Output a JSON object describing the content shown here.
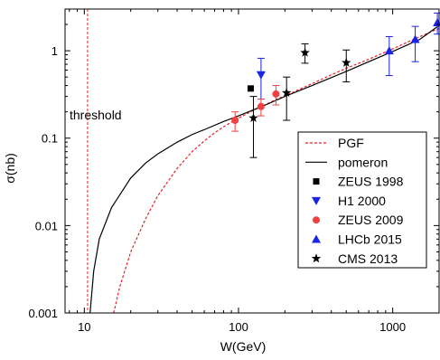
{
  "chart_data": {
    "type": "scatter",
    "xlabel": "W(GeV)",
    "ylabel": "σ(nb)",
    "xscale": "log",
    "yscale": "log",
    "xlim": [
      7.5,
      2000
    ],
    "ylim": [
      0.001,
      3
    ],
    "x_ticks": [
      {
        "v": 10,
        "label": "10"
      },
      {
        "v": 100,
        "label": "100"
      },
      {
        "v": 1000,
        "label": "1000"
      }
    ],
    "y_ticks": [
      {
        "v": 0.001,
        "label": "0.001"
      },
      {
        "v": 0.01,
        "label": "0.01"
      },
      {
        "v": 0.1,
        "label": "0.1"
      },
      {
        "v": 1,
        "label": "1"
      }
    ],
    "threshold": {
      "x": 10.5,
      "label": "threshold",
      "color": "#e8222a"
    },
    "legend_position": "lower-right",
    "curves": [
      {
        "name": "PGF",
        "color": "#e8222a",
        "style": "dashed",
        "points": [
          [
            15.5,
            0.001
          ],
          [
            17,
            0.002
          ],
          [
            20,
            0.005
          ],
          [
            25,
            0.012
          ],
          [
            30,
            0.022
          ],
          [
            40,
            0.045
          ],
          [
            50,
            0.07
          ],
          [
            60,
            0.093
          ],
          [
            70,
            0.115
          ],
          [
            80,
            0.135
          ],
          [
            100,
            0.17
          ],
          [
            130,
            0.215
          ],
          [
            170,
            0.27
          ],
          [
            200,
            0.305
          ],
          [
            300,
            0.42
          ],
          [
            400,
            0.53
          ],
          [
            500,
            0.63
          ],
          [
            700,
            0.8
          ],
          [
            1000,
            1.05
          ],
          [
            1500,
            1.45
          ],
          [
            2000,
            1.8
          ]
        ]
      },
      {
        "name": "pomeron",
        "color": "#000000",
        "style": "solid",
        "points": [
          [
            10.9,
            0.001
          ],
          [
            11.5,
            0.003
          ],
          [
            12.5,
            0.007
          ],
          [
            15,
            0.016
          ],
          [
            20,
            0.035
          ],
          [
            25,
            0.052
          ],
          [
            30,
            0.066
          ],
          [
            40,
            0.09
          ],
          [
            50,
            0.11
          ],
          [
            60,
            0.125
          ],
          [
            80,
            0.155
          ],
          [
            100,
            0.18
          ],
          [
            150,
            0.24
          ],
          [
            200,
            0.3
          ],
          [
            300,
            0.4
          ],
          [
            500,
            0.58
          ],
          [
            700,
            0.75
          ],
          [
            1000,
            0.98
          ],
          [
            1500,
            1.35
          ],
          [
            2000,
            1.95
          ]
        ]
      }
    ],
    "series": [
      {
        "name": "ZEUS 1998",
        "marker": "square",
        "color": "#000000",
        "points": [
          {
            "x": 120,
            "y": 0.37,
            "lo": 0.37,
            "hi": 0.37
          }
        ]
      },
      {
        "name": "H1 2000",
        "marker": "triangle-down",
        "color": "#1a24e8",
        "points": [
          {
            "x": 140,
            "y": 0.53,
            "lo": 0.28,
            "hi": 0.82
          }
        ]
      },
      {
        "name": "ZEUS 2009",
        "marker": "circle",
        "color": "#f04040",
        "points": [
          {
            "x": 95,
            "y": 0.16,
            "lo": 0.12,
            "hi": 0.2
          },
          {
            "x": 140,
            "y": 0.23,
            "lo": 0.18,
            "hi": 0.28
          },
          {
            "x": 175,
            "y": 0.32,
            "lo": 0.24,
            "hi": 0.4
          }
        ]
      },
      {
        "name": "LHCb 2015",
        "marker": "triangle-up",
        "color": "#1a24e8",
        "points": [
          {
            "x": 950,
            "y": 1.0,
            "lo": 0.52,
            "hi": 1.45
          },
          {
            "x": 1400,
            "y": 1.35,
            "lo": 0.75,
            "hi": 1.9
          },
          {
            "x": 1950,
            "y": 2.1,
            "lo": 1.55,
            "hi": 2.7
          }
        ]
      },
      {
        "name": "CMS 2013",
        "marker": "star",
        "color": "#000000",
        "points": [
          {
            "x": 125,
            "y": 0.17,
            "lo": 0.06,
            "hi": 0.3
          },
          {
            "x": 205,
            "y": 0.33,
            "lo": 0.16,
            "hi": 0.5
          },
          {
            "x": 270,
            "y": 0.95,
            "lo": 0.72,
            "hi": 1.2
          },
          {
            "x": 500,
            "y": 0.73,
            "lo": 0.44,
            "hi": 1.02
          }
        ]
      }
    ]
  }
}
